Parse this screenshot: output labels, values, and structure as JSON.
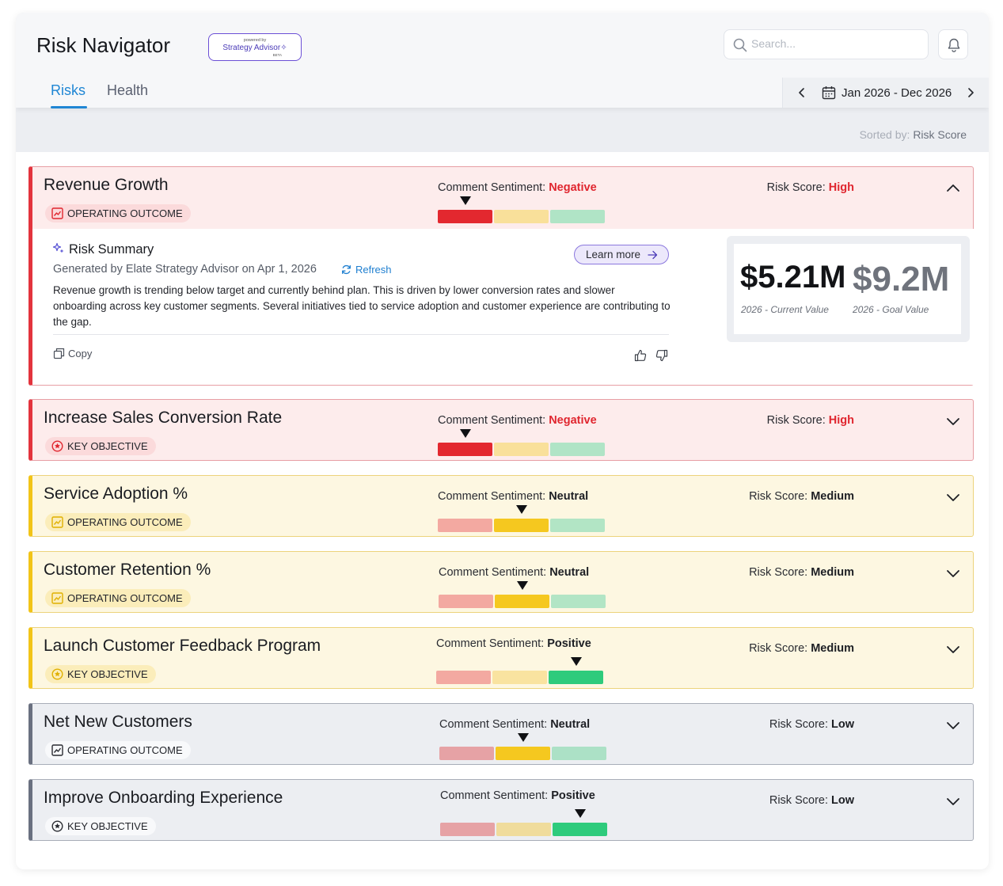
{
  "app": {
    "title": "Risk Navigator",
    "badge": {
      "powered_by": "powered by",
      "name": "Strategy Advisor",
      "tag": "BETA"
    }
  },
  "search": {
    "placeholder": "Search..."
  },
  "tabs": [
    {
      "label": "Risks",
      "active": true
    },
    {
      "label": "Health",
      "active": false
    }
  ],
  "date_range": {
    "label": "Jan 2026 - Dec 2026"
  },
  "sort": {
    "prefix": "Sorted by:",
    "value": "Risk Score"
  },
  "labels": {
    "sentiment": "Comment Sentiment:",
    "risk_score": "Risk Score:"
  },
  "colors": {
    "accent": "#1f86d4",
    "high": "#e0262f",
    "bar_negative": "#e3282f",
    "bar_neutral": "#f5c81f",
    "bar_positive": "#2ecb7c"
  },
  "risks": [
    {
      "title": "Revenue Growth",
      "type": "OPERATING OUTCOME",
      "type_icon": "chart-line-icon",
      "sentiment": "Negative",
      "risk_score": "High",
      "expanded": true
    },
    {
      "title": "Increase Sales Conversion Rate",
      "type": "KEY OBJECTIVE",
      "type_icon": "target-star-icon",
      "sentiment": "Negative",
      "risk_score": "High",
      "expanded": false
    },
    {
      "title": "Service Adoption %",
      "type": "OPERATING OUTCOME",
      "type_icon": "chart-line-icon",
      "sentiment": "Neutral",
      "risk_score": "Medium",
      "expanded": false
    },
    {
      "title": "Customer Retention %",
      "type": "OPERATING OUTCOME",
      "type_icon": "chart-line-icon",
      "sentiment": "Neutral",
      "risk_score": "Medium",
      "expanded": false
    },
    {
      "title": "Launch Customer Feedback Program",
      "type": "KEY OBJECTIVE",
      "type_icon": "target-star-icon",
      "sentiment": "Positive",
      "risk_score": "Medium",
      "expanded": false
    },
    {
      "title": "Net New Customers",
      "type": "OPERATING OUTCOME",
      "type_icon": "chart-line-icon",
      "sentiment": "Neutral",
      "risk_score": "Low",
      "expanded": false
    },
    {
      "title": "Improve Onboarding Experience",
      "type": "KEY OBJECTIVE",
      "type_icon": "target-star-icon",
      "sentiment": "Positive",
      "risk_score": "Low",
      "expanded": false
    }
  ],
  "summary": {
    "heading": "Risk Summary",
    "generated_by": "Generated by Elate Strategy Advisor on Apr 1, 2026",
    "refresh": "Refresh",
    "learn_more": "Learn more",
    "text": "Revenue growth is trending below target and currently behind plan. This is driven by lower conversion rates and slower onboarding across key customer segments. Several initiatives tied to service adoption and customer experience are contributing to the gap.",
    "copy": "Copy",
    "current_value": "$5.21M",
    "current_label": "2026 - Current Value",
    "goal_value": "$9.2M",
    "goal_label": "2026 - Goal Value"
  }
}
